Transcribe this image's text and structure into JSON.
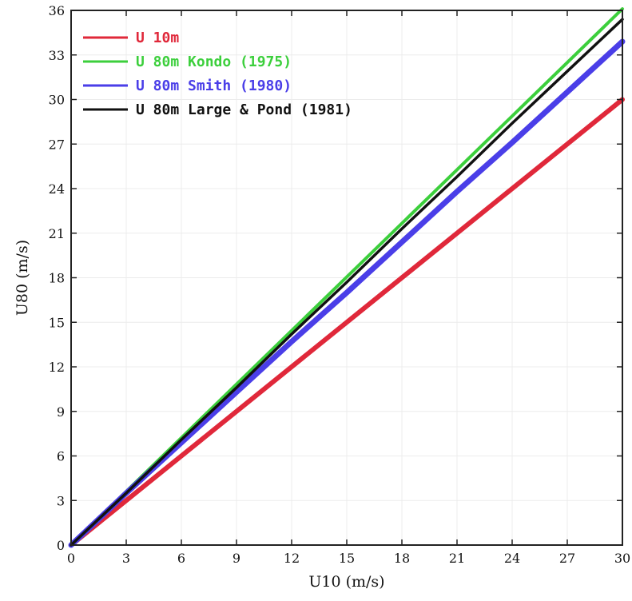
{
  "chart_data": {
    "type": "line",
    "xlabel": "U10 (m/s)",
    "ylabel": "U80 (m/s)",
    "xlim": [
      0,
      30
    ],
    "ylim": [
      0,
      36
    ],
    "xticks": [
      "0",
      "3",
      "6",
      "9",
      "12",
      "15",
      "18",
      "21",
      "24",
      "27",
      "30"
    ],
    "yticks": [
      "0",
      "3",
      "6",
      "9",
      "12",
      "15",
      "18",
      "21",
      "24",
      "27",
      "30",
      "33",
      "36"
    ],
    "grid": true,
    "legend_position": "top-left",
    "series": [
      {
        "name": "U 10m",
        "color": "#e0283a",
        "x": [
          0,
          30
        ],
        "y": [
          0,
          30
        ]
      },
      {
        "name": "U 80m Kondo (1975)",
        "color": "#3ccf3c",
        "x": [
          0,
          30
        ],
        "y": [
          0,
          36.1
        ]
      },
      {
        "name": "U 80m Smith (1980)",
        "color": "#4a3ee8",
        "x": [
          0,
          3,
          6,
          9,
          12,
          15,
          18,
          21,
          24,
          27,
          30
        ],
        "y": [
          0,
          3.5,
          6.9,
          10.3,
          13.7,
          17.0,
          20.4,
          23.8,
          27.1,
          30.5,
          33.9
        ]
      },
      {
        "name": "U 80m Large & Pond (1981)",
        "color": "#111111",
        "x": [
          0,
          3,
          6,
          9,
          12,
          15,
          18,
          21,
          24,
          27,
          30
        ],
        "y": [
          0,
          3.5,
          7.1,
          10.6,
          14.2,
          17.7,
          21.3,
          24.8,
          28.4,
          31.9,
          35.4
        ]
      }
    ]
  }
}
